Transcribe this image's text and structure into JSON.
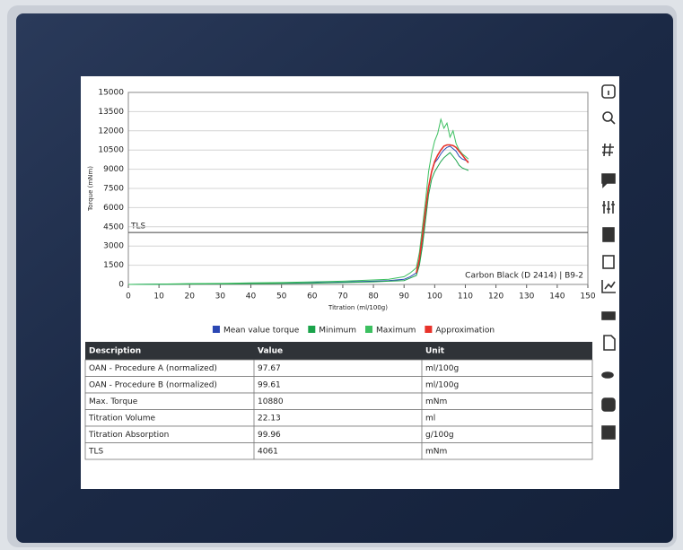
{
  "chart_data": {
    "type": "line",
    "ylabel": "Torque (mNm)",
    "xlabel": "Titration (ml/100g)",
    "annotation": "Carbon Black (D 2414) | B9-2",
    "reference_line": {
      "label": "TLS",
      "value": 4061
    },
    "xlim": [
      0,
      150
    ],
    "xticks": [
      0,
      10,
      20,
      30,
      40,
      50,
      60,
      70,
      80,
      90,
      100,
      110,
      120,
      130,
      140,
      150
    ],
    "ylim": [
      0,
      15000
    ],
    "yticks": [
      0,
      1500,
      3000,
      4500,
      6000,
      7500,
      9000,
      10500,
      12000,
      13500,
      15000
    ],
    "grid": true,
    "legend": "bottom",
    "x": [
      0,
      10,
      20,
      30,
      40,
      50,
      60,
      70,
      80,
      85,
      90,
      92,
      94,
      95,
      96,
      97,
      98,
      99,
      100,
      101,
      102,
      103,
      104,
      105,
      106,
      107,
      108,
      109,
      110,
      111
    ],
    "series": [
      {
        "name": "Mean value torque",
        "color": "#2b47b3",
        "values": [
          0,
          20,
          40,
          60,
          80,
          100,
          130,
          180,
          250,
          300,
          400,
          600,
          900,
          1800,
          3500,
          5500,
          7500,
          8800,
          9500,
          9800,
          10200,
          10500,
          10700,
          10800,
          10600,
          10400,
          10000,
          9800,
          9700,
          9600
        ]
      },
      {
        "name": "Minimum",
        "color": "#1aa34a",
        "values": [
          0,
          10,
          30,
          40,
          60,
          80,
          100,
          150,
          200,
          250,
          300,
          500,
          700,
          1500,
          3000,
          5000,
          7000,
          8200,
          8800,
          9200,
          9600,
          9900,
          10100,
          10300,
          10000,
          9700,
          9300,
          9100,
          9000,
          8900
        ]
      },
      {
        "name": "Maximum",
        "color": "#3cc060",
        "values": [
          0,
          30,
          60,
          80,
          120,
          150,
          200,
          250,
          350,
          400,
          600,
          900,
          1300,
          2500,
          4500,
          6500,
          8800,
          10200,
          11200,
          11800,
          12900,
          12200,
          12600,
          11500,
          12000,
          11000,
          10500,
          10200,
          10000,
          9800
        ]
      },
      {
        "name": "Approximation",
        "color": "#e8322a",
        "values": [
          null,
          null,
          null,
          null,
          null,
          null,
          null,
          null,
          null,
          null,
          null,
          null,
          900,
          2000,
          3800,
          5800,
          7600,
          8800,
          9600,
          10100,
          10500,
          10800,
          10900,
          10900,
          10850,
          10700,
          10400,
          10100,
          9800,
          9500
        ]
      }
    ]
  },
  "table": {
    "header": [
      "Description",
      "Value",
      "Unit"
    ],
    "rows": [
      [
        "OAN - Procedure A (normalized)",
        97.67,
        "ml/100g"
      ],
      [
        "OAN - Procedure B (normalized)",
        99.61,
        "ml/100g"
      ],
      [
        "Max. Torque",
        10880,
        "mNm"
      ],
      [
        "Titration Volume",
        22.13,
        "ml"
      ],
      [
        "Titration Absorption",
        99.96,
        "g/100g"
      ],
      [
        "TLS",
        4061,
        "mNm"
      ]
    ]
  }
}
